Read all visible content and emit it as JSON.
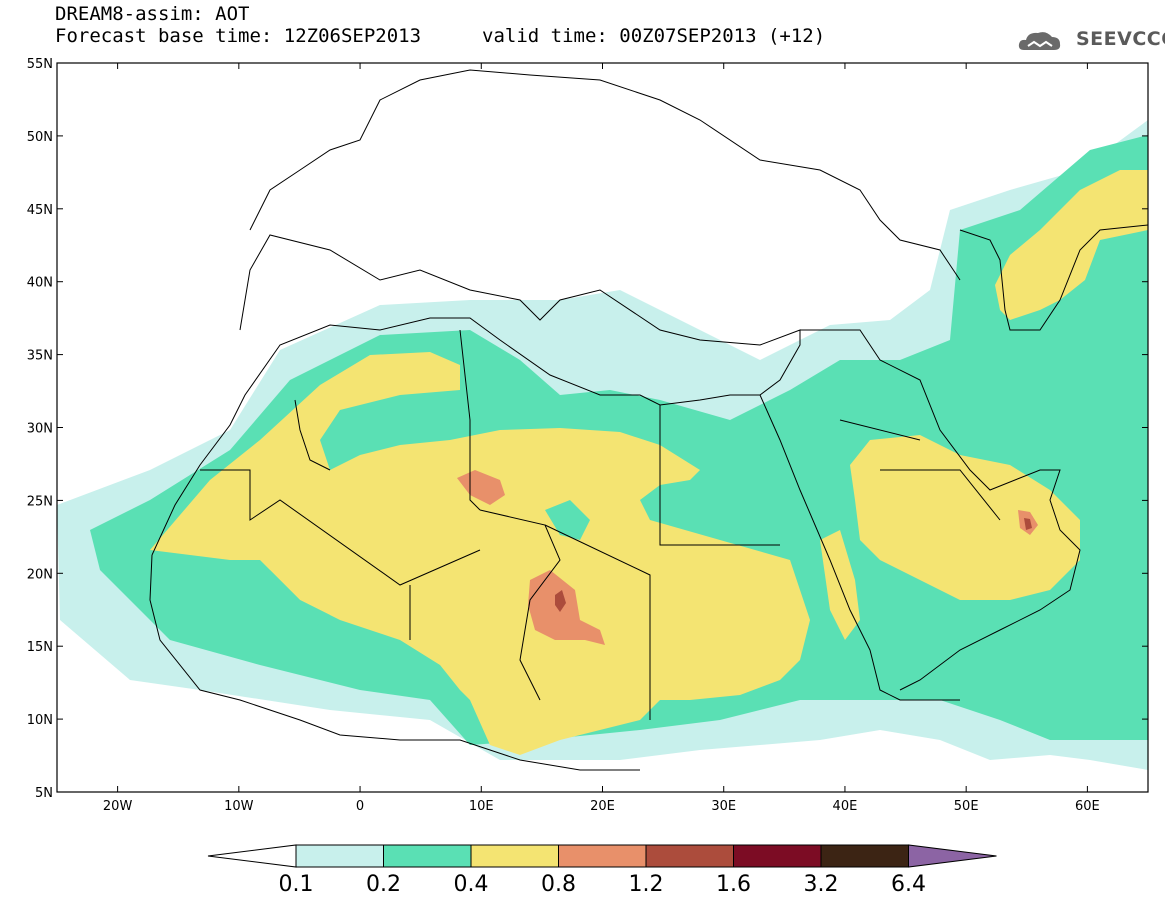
{
  "header": {
    "line1": "DREAM8-assim: AOT",
    "line2": "Forecast base time: 12Z06SEP2013",
    "valid": "valid time: 00Z07SEP2013 (+12)",
    "logo_text": "SEEVCCC"
  },
  "map": {
    "lon_range": [
      -25,
      65
    ],
    "lat_range": [
      5,
      55
    ],
    "lat_ticks": [
      {
        "value": 55,
        "label": "55N"
      },
      {
        "value": 50,
        "label": "50N"
      },
      {
        "value": 45,
        "label": "45N"
      },
      {
        "value": 40,
        "label": "40N"
      },
      {
        "value": 35,
        "label": "35N"
      },
      {
        "value": 30,
        "label": "30N"
      },
      {
        "value": 25,
        "label": "25N"
      },
      {
        "value": 20,
        "label": "20N"
      },
      {
        "value": 15,
        "label": "15N"
      },
      {
        "value": 10,
        "label": "10N"
      },
      {
        "value": 5,
        "label": "5N"
      }
    ],
    "lon_ticks": [
      {
        "value": -20,
        "label": "20W"
      },
      {
        "value": -10,
        "label": "10W"
      },
      {
        "value": 0,
        "label": "0"
      },
      {
        "value": 10,
        "label": "10E"
      },
      {
        "value": 20,
        "label": "20E"
      },
      {
        "value": 30,
        "label": "30E"
      },
      {
        "value": 40,
        "label": "40E"
      },
      {
        "value": 50,
        "label": "50E"
      },
      {
        "value": 60,
        "label": "60E"
      }
    ]
  },
  "colorbar": {
    "levels": [
      "0.1",
      "0.2",
      "0.4",
      "0.8",
      "1.2",
      "1.6",
      "3.2",
      "6.4"
    ],
    "colors": [
      "#ffffff",
      "#c8f0ec",
      "#5ae0b4",
      "#f4e472",
      "#e8906a",
      "#ac4c3c",
      "#7c0c24",
      "#3c2414",
      "#8c64a4"
    ]
  },
  "colors": {
    "c01": "#c8f0ec",
    "c02": "#5ae0b4",
    "c04": "#f4e472",
    "c08": "#e8906a",
    "c12": "#ac4c3c"
  }
}
